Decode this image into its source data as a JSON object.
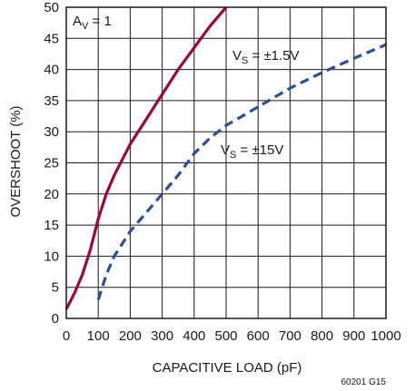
{
  "chart_data": {
    "type": "line",
    "xlabel": "CAPACITIVE LOAD (pF)",
    "ylabel": "OVERSHOOT (%)",
    "xlim": [
      0,
      1000
    ],
    "ylim": [
      0,
      50
    ],
    "x_ticks": [
      0,
      100,
      200,
      300,
      400,
      500,
      600,
      700,
      800,
      900,
      1000
    ],
    "y_ticks": [
      0,
      5,
      10,
      15,
      20,
      25,
      30,
      35,
      40,
      45,
      50
    ],
    "grid": true,
    "series": [
      {
        "color": "#a0063a",
        "style": "solid",
        "x": [
          0,
          25,
          50,
          75,
          100,
          125,
          150,
          200,
          250,
          300,
          350,
          400,
          450,
          500
        ],
        "y": [
          1.5,
          4,
          7,
          11,
          16,
          20,
          23,
          28,
          32,
          36,
          40,
          43.5,
          47,
          50.5
        ]
      },
      {
        "color": "#2b4ea2",
        "style": "dashed",
        "x": [
          100,
          125,
          150,
          200,
          250,
          300,
          350,
          400,
          450,
          500,
          600,
          700,
          800,
          900,
          1000
        ],
        "y": [
          3,
          7,
          10,
          14,
          17,
          20,
          23,
          26.5,
          29,
          31,
          34,
          37,
          39.5,
          41.8,
          44
        ]
      }
    ],
    "annotations": {
      "gain": {
        "main": "A",
        "sub": "V",
        "rest": " = 1"
      },
      "series1_label": {
        "main": "V",
        "sub": "S",
        "rest": " = ±1.5V"
      },
      "series2_label": {
        "main": "V",
        "sub": "S",
        "rest": " = ±15V"
      }
    },
    "figure_id": "60201 G15"
  }
}
